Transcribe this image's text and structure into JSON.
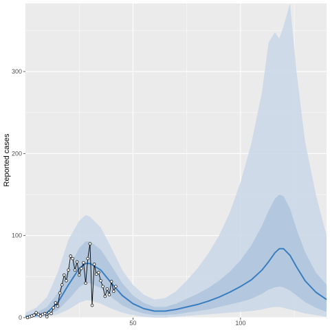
{
  "chart_data": {
    "type": "line",
    "title": "",
    "xlabel": "",
    "ylabel": "Reported cases",
    "xlim": [
      0,
      140
    ],
    "ylim": [
      0,
      383
    ],
    "x_ticks": [
      50,
      100
    ],
    "x_tick_labels": [
      "50",
      "100"
    ],
    "y_ticks": [
      0,
      100,
      200,
      300
    ],
    "y_tick_labels": [
      "0",
      "100",
      "200",
      "300"
    ],
    "grid": true,
    "legend": "none",
    "colors": {
      "panel": "#ebebeb",
      "grid": "#ffffff",
      "band_outer": "#c9d7e6",
      "band_inner": "#aec4dc",
      "median_line": "#3a7dbf",
      "observed_line": "#000000",
      "observed_points": "#ffffff"
    },
    "median": {
      "x": [
        0,
        5,
        10,
        15,
        20,
        25,
        28,
        30,
        35,
        40,
        45,
        50,
        55,
        60,
        65,
        70,
        75,
        80,
        85,
        90,
        95,
        100,
        105,
        110,
        113,
        116,
        118,
        120,
        123,
        126,
        130,
        135,
        140
      ],
      "y": [
        1,
        3,
        6,
        18,
        40,
        60,
        66,
        66,
        58,
        42,
        27,
        17,
        11,
        8,
        8,
        10,
        13,
        16,
        20,
        25,
        31,
        38,
        46,
        58,
        68,
        79,
        84,
        84,
        76,
        62,
        45,
        31,
        22
      ]
    },
    "band_inner": {
      "x": [
        0,
        5,
        10,
        15,
        20,
        25,
        28,
        30,
        35,
        40,
        45,
        50,
        55,
        60,
        65,
        70,
        75,
        80,
        85,
        90,
        95,
        100,
        105,
        110,
        113,
        116,
        118,
        120,
        123,
        126,
        130,
        135,
        140
      ],
      "upper": [
        3,
        6,
        13,
        30,
        60,
        85,
        93,
        93,
        83,
        63,
        42,
        27,
        18,
        13,
        13,
        17,
        23,
        29,
        36,
        45,
        56,
        70,
        88,
        112,
        130,
        145,
        150,
        148,
        133,
        108,
        80,
        55,
        40
      ],
      "lower": [
        0,
        1,
        3,
        9,
        22,
        37,
        42,
        42,
        36,
        25,
        15,
        9,
        5,
        3,
        3,
        4,
        6,
        8,
        10,
        13,
        16,
        19,
        23,
        29,
        34,
        37,
        38,
        37,
        33,
        27,
        19,
        12,
        7
      ]
    },
    "band_outer": {
      "x": [
        0,
        5,
        10,
        15,
        20,
        25,
        28,
        30,
        35,
        40,
        45,
        50,
        55,
        60,
        65,
        70,
        75,
        80,
        85,
        90,
        95,
        100,
        105,
        110,
        113,
        116,
        118,
        120,
        123,
        126,
        130,
        135,
        140
      ],
      "upper": [
        6,
        12,
        25,
        55,
        95,
        118,
        125,
        123,
        110,
        85,
        58,
        40,
        28,
        22,
        24,
        32,
        45,
        60,
        78,
        100,
        128,
        165,
        212,
        275,
        335,
        348,
        340,
        355,
        383,
        300,
        215,
        150,
        100
      ],
      "lower": [
        0,
        0,
        1,
        4,
        10,
        18,
        21,
        21,
        17,
        11,
        6,
        3,
        1,
        0,
        0,
        1,
        2,
        3,
        4,
        5,
        6,
        7,
        8,
        10,
        12,
        13,
        13,
        12,
        10,
        8,
        5,
        3,
        1
      ]
    },
    "observed": {
      "x": [
        1,
        2,
        3,
        4,
        5,
        6,
        7,
        8,
        9,
        10,
        11,
        12,
        13,
        14,
        15,
        16,
        17,
        18,
        19,
        20,
        21,
        22,
        23,
        24,
        25,
        26,
        27,
        28,
        29,
        30,
        31,
        32,
        33,
        34,
        35,
        36,
        37,
        38,
        39,
        40,
        41,
        42
      ],
      "y": [
        0,
        1,
        2,
        3,
        6,
        4,
        2,
        4,
        5,
        1,
        6,
        5,
        12,
        18,
        14,
        30,
        40,
        52,
        45,
        58,
        75,
        72,
        58,
        68,
        52,
        60,
        67,
        42,
        72,
        90,
        15,
        65,
        53,
        55,
        45,
        38,
        26,
        35,
        28,
        44,
        32,
        38
      ]
    }
  }
}
